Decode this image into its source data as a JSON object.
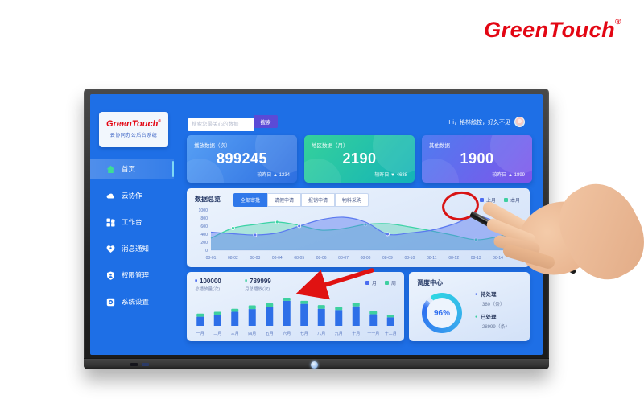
{
  "brand": {
    "name": "GreenTouch",
    "reg": "®"
  },
  "dashboard": {
    "sidebar": {
      "logo": "GreenTouch",
      "logo_reg": "®",
      "subtitle": "云协同办公后台系统",
      "items": [
        {
          "label": "首页",
          "icon": "home-icon",
          "active": true
        },
        {
          "label": "云协作",
          "icon": "cloud-icon",
          "active": false
        },
        {
          "label": "工作台",
          "icon": "workbench-grid-icon",
          "active": false
        },
        {
          "label": "消息通知",
          "icon": "heart-notification-icon",
          "active": false
        },
        {
          "label": "权限管理",
          "icon": "shield-user-icon",
          "active": false
        },
        {
          "label": "系统设置",
          "icon": "settings-icon",
          "active": false
        }
      ]
    },
    "topbar": {
      "search_placeholder": "搜索您最关心的数据",
      "search_button": "搜索",
      "greeting": "Hi，格林触控，好久不见"
    },
    "stat_cards": [
      {
        "title": "播放数据（次）",
        "value": "899245",
        "compare": "较昨日 ▲ 1234"
      },
      {
        "title": "地区数据（月）",
        "value": "2190",
        "compare": "较昨日 ▼ 4688"
      },
      {
        "title": "其他数据-",
        "value": "1900",
        "compare": "较昨日 ▲ 1899"
      }
    ],
    "overview": {
      "title": "数据总览",
      "tabs": [
        "全部审批",
        "请假申请",
        "报销申请",
        "物料采购"
      ],
      "active_tab": "全部审批",
      "legend": [
        {
          "label": "上月",
          "color": "#4a6cf0"
        },
        {
          "label": "本月",
          "color": "#3ecfa0"
        }
      ]
    },
    "play_stats": {
      "stat1_value": "100000",
      "stat1_label": "总播放量(次)",
      "stat2_value": "789999",
      "stat2_label": "月总播放(次)",
      "legend": [
        {
          "label": "月",
          "color": "#2e6fe8"
        },
        {
          "label": "周",
          "color": "#3ed0a0"
        }
      ]
    },
    "dispatch": {
      "title": "调度中心",
      "percent": "96%",
      "items": [
        {
          "label": "待处理",
          "value": "380（条）",
          "color": "#2f54eb"
        },
        {
          "label": "已处理",
          "value": "28999（条）",
          "color": "#3ecfa0"
        }
      ]
    }
  },
  "chart_data": [
    {
      "type": "area",
      "title": "数据总览",
      "x": [
        "08-01",
        "08-02",
        "08-03",
        "08-04",
        "08-05",
        "08-06",
        "08-07",
        "08-08",
        "08-09",
        "08-10",
        "08-11",
        "08-12",
        "08-13",
        "08-14",
        "08-15"
      ],
      "ylim": [
        0,
        1000
      ],
      "yticks": [
        0,
        200,
        400,
        600,
        800,
        1000
      ],
      "grid": false,
      "legend_position": "top-right",
      "series": [
        {
          "name": "本月",
          "color": "#3bd3a5",
          "fill": "rgba(62,208,160,0.35)",
          "values": [
            300,
            550,
            640,
            700,
            620,
            500,
            540,
            640,
            660,
            580,
            480,
            370,
            260,
            340,
            500
          ],
          "dots": [
            1,
            3,
            7,
            12
          ]
        },
        {
          "name": "上月",
          "color": "#5b79f0",
          "fill": "rgba(91,121,240,0.45)",
          "values": [
            450,
            410,
            380,
            430,
            600,
            760,
            820,
            700,
            400,
            430,
            500,
            650,
            850,
            700,
            570
          ],
          "dots": [
            2,
            4,
            8,
            12
          ]
        }
      ]
    },
    {
      "type": "bar",
      "stacked": true,
      "categories": [
        "一月",
        "二月",
        "三月",
        "四月",
        "五月",
        "六月",
        "七月",
        "八月",
        "九月",
        "十月",
        "十一月",
        "十二月"
      ],
      "ylim": [
        0,
        100
      ],
      "series": [
        {
          "name": "月",
          "color": "#2e6fe8",
          "values": [
            30,
            36,
            46,
            55,
            62,
            82,
            72,
            56,
            52,
            64,
            38,
            28
          ]
        },
        {
          "name": "周",
          "color": "#3ed0a0",
          "values": [
            10,
            10,
            10,
            12,
            12,
            10,
            10,
            12,
            10,
            12,
            10,
            8
          ]
        }
      ]
    },
    {
      "type": "pie",
      "title": "调度中心",
      "values": [
        {
          "label": "已处理占比",
          "value": 96
        }
      ],
      "unit": "%"
    }
  ]
}
